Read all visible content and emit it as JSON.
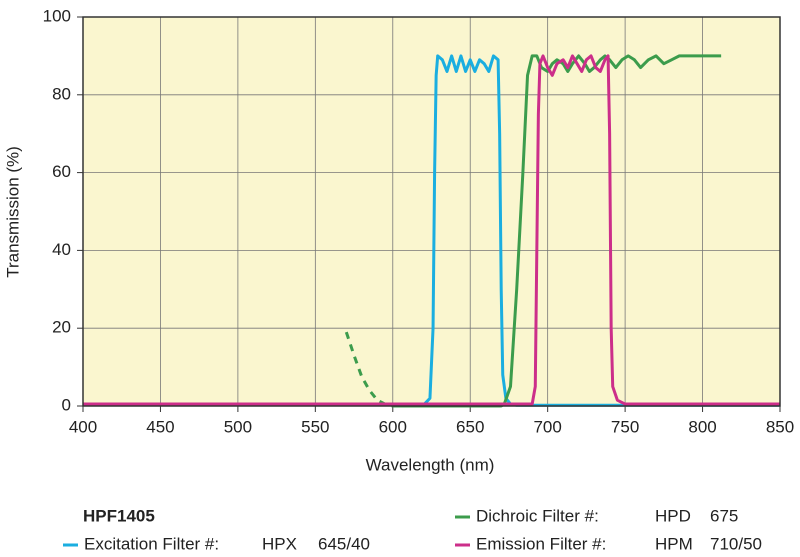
{
  "chart_data": {
    "type": "line",
    "xlabel": "Wavelength (nm)",
    "ylabel": "Transmission (%)",
    "xlim": [
      400,
      850
    ],
    "ylim": [
      0,
      100
    ],
    "xticks": [
      400,
      450,
      500,
      550,
      600,
      650,
      700,
      750,
      800,
      850
    ],
    "yticks": [
      0,
      20,
      40,
      60,
      80,
      100
    ],
    "grid": true,
    "background": "#faf6cf",
    "legend_title": "HPF1405",
    "series": [
      {
        "name": "Excitation Filter #:",
        "part": "HPX",
        "spec": "645/40",
        "color": "#1aaee0",
        "x": [
          400,
          620,
          624,
          626,
          627,
          628,
          629,
          632,
          635,
          638,
          641,
          644,
          647,
          650,
          653,
          656,
          659,
          662,
          665,
          668,
          669,
          670,
          671,
          673,
          676,
          680,
          850
        ],
        "values": [
          0.3,
          0.3,
          2,
          20,
          60,
          85,
          90,
          89,
          86,
          90,
          86,
          90,
          86,
          89,
          86,
          89,
          88,
          86,
          90,
          89,
          70,
          30,
          8,
          2,
          0.5,
          0.2,
          0.2
        ]
      },
      {
        "name": "Dichroic Filter #:",
        "part": "HPD",
        "spec": "675",
        "color": "#3c9c4c",
        "dashed_until": 600,
        "x": [
          570,
          575,
          580,
          585,
          590,
          595,
          600,
          670,
          672,
          676,
          680,
          684,
          687,
          690,
          693,
          696,
          700,
          703,
          706,
          710,
          713,
          716,
          720,
          724,
          727,
          730,
          734,
          737,
          740,
          744,
          748,
          752,
          756,
          760,
          765,
          770,
          775,
          780,
          785,
          812
        ],
        "values": [
          19,
          13,
          7.5,
          4,
          1.5,
          0.5,
          0,
          0,
          0.5,
          5,
          30,
          60,
          85,
          90,
          90,
          87,
          86,
          88,
          89,
          88,
          86,
          88,
          90,
          88,
          86,
          87,
          89,
          90,
          89,
          87,
          89,
          90,
          89,
          87,
          89,
          90,
          88,
          89,
          90,
          90
        ]
      },
      {
        "name": "Emission Filter #:",
        "part": "HPM",
        "spec": "710/50",
        "color": "#cc2e8a",
        "x": [
          400,
          690,
          692,
          693,
          694,
          695,
          697,
          700,
          703,
          706,
          710,
          713,
          716,
          719,
          722,
          725,
          728,
          731,
          734,
          737,
          739,
          740,
          741,
          742,
          745,
          750,
          850
        ],
        "values": [
          0.5,
          0.5,
          5,
          40,
          75,
          88,
          90,
          87,
          85,
          88,
          89,
          87,
          90,
          88,
          86,
          89,
          90,
          87,
          86,
          89,
          90,
          70,
          20,
          5,
          1.5,
          0.5,
          0.5
        ]
      }
    ]
  }
}
